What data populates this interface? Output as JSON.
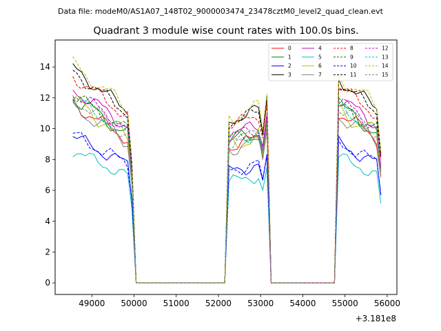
{
  "suptitle": "Data file: modeM0/AS1A07_148T02_9000003474_23478cztM0_level2_quad_clean.evt",
  "chart_data": {
    "type": "line",
    "title": "Quadrant 3 module wise count rates with 100.0s bins.",
    "xlabel": "",
    "ylabel": "",
    "x_offset_label": "+3.181e8",
    "xlim": [
      48130,
      56230
    ],
    "ylim": [
      -0.75,
      15.75
    ],
    "xticks": [
      49000,
      50000,
      51000,
      52000,
      53000,
      54000,
      55000,
      56000
    ],
    "yticks": [
      0,
      2,
      4,
      6,
      8,
      10,
      12,
      14
    ],
    "legend_position": "top-right",
    "series": [
      {
        "name": "0",
        "color": "#ff0000",
        "dash": "solid",
        "level": 11.6,
        "wave": 0.35
      },
      {
        "name": "1",
        "color": "#008000",
        "dash": "solid",
        "level": 12.0,
        "wave": 0.45
      },
      {
        "name": "2",
        "color": "#0000ff",
        "dash": "solid",
        "level": 9.5,
        "wave": 0.35
      },
      {
        "name": "3",
        "color": "#000000",
        "dash": "solid",
        "level": 13.9,
        "wave": 0.35
      },
      {
        "name": "4",
        "color": "#bf00bf",
        "dash": "solid",
        "level": 12.6,
        "wave": 0.4
      },
      {
        "name": "5",
        "color": "#00bfbf",
        "dash": "solid",
        "level": 8.6,
        "wave": 0.3
      },
      {
        "name": "6",
        "color": "#bfbf00",
        "dash": "solid",
        "level": 11.8,
        "wave": 0.5
      },
      {
        "name": "7",
        "color": "#808080",
        "dash": "solid",
        "level": 11.4,
        "wave": 0.4
      },
      {
        "name": "8",
        "color": "#ff0000",
        "dash": "dashed",
        "level": 13.4,
        "wave": 0.35
      },
      {
        "name": "9",
        "color": "#008000",
        "dash": "dashed",
        "level": 12.2,
        "wave": 0.4
      },
      {
        "name": "10",
        "color": "#0000ff",
        "dash": "dashed",
        "level": 9.6,
        "wave": 0.35
      },
      {
        "name": "11",
        "color": "#000000",
        "dash": "dashed",
        "level": 13.7,
        "wave": 0.35
      },
      {
        "name": "12",
        "color": "#bf00bf",
        "dash": "dashed",
        "level": 12.4,
        "wave": 0.4
      },
      {
        "name": "13",
        "color": "#00bfbf",
        "dash": "dashed",
        "level": 12.0,
        "wave": 0.35
      },
      {
        "name": "14",
        "color": "#bfbf00",
        "dash": "dashed",
        "level": 14.1,
        "wave": 0.45
      },
      {
        "name": "15",
        "color": "#808080",
        "dash": "dashed",
        "level": 12.0,
        "wave": 0.4
      }
    ],
    "segments": [
      {
        "start": 48550,
        "end": 49950,
        "start_factor": 1.0,
        "end_factor": 0.79,
        "final_drop": 0.4
      },
      {
        "start": 52250,
        "end": 53150,
        "start_factor": 0.76,
        "end_factor": 0.82,
        "final_drop": 0.3
      },
      {
        "start": 54850,
        "end": 55850,
        "start_factor": 0.95,
        "end_factor": 0.8,
        "final_drop": 0.7
      }
    ],
    "gap_value": 0,
    "bin_width": 100,
    "x_start": 48550,
    "x_end": 55850
  }
}
